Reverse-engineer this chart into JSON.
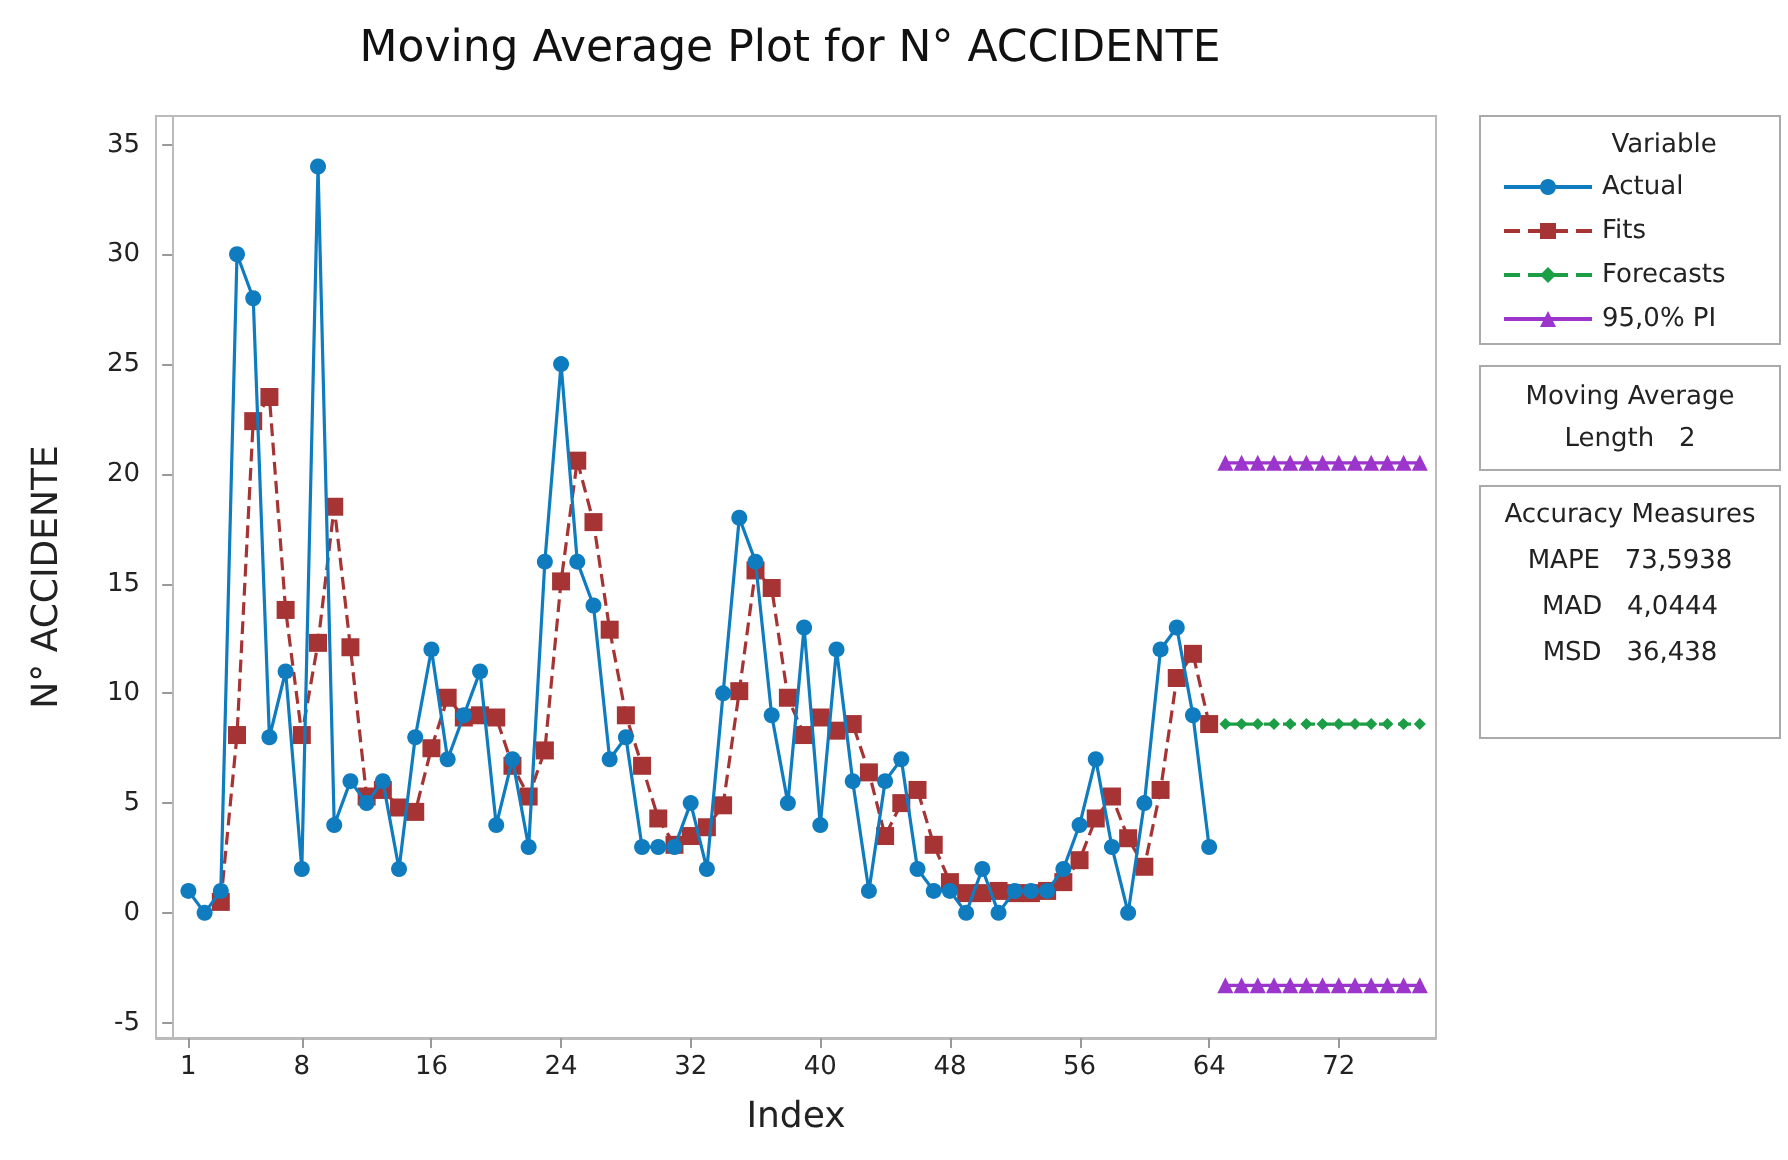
{
  "chart_data": {
    "type": "line",
    "title": "Moving Average Plot for N° ACCIDENTE",
    "xlabel": "Index",
    "ylabel": "N° ACCIDENTE",
    "legend_title": "Variable",
    "legend": "right",
    "grid": false,
    "xlim": [
      -1,
      78
    ],
    "xticks": [
      1,
      8,
      16,
      24,
      32,
      40,
      48,
      56,
      64,
      72
    ],
    "ylim": [
      -5.7,
      36.3
    ],
    "yticks": [
      -5,
      0,
      5,
      10,
      15,
      20,
      25,
      30,
      35
    ],
    "series": [
      {
        "name": "Actual",
        "color": "#0f7cc0",
        "marker": "circle",
        "line_style": "solid",
        "x": [
          1,
          2,
          3,
          4,
          5,
          6,
          7,
          8,
          9,
          10,
          11,
          12,
          13,
          14,
          15,
          16,
          17,
          18,
          19,
          20,
          21,
          22,
          23,
          24,
          25,
          26,
          27,
          28,
          29,
          30,
          31,
          32,
          33,
          34,
          35,
          36,
          37,
          38,
          39,
          40,
          41,
          42,
          43,
          44,
          45,
          46,
          47,
          48,
          49,
          50,
          51,
          52,
          53,
          54,
          55,
          56,
          57,
          58,
          59,
          60,
          61,
          62,
          63,
          64
        ],
        "values": [
          1,
          0,
          1,
          30,
          28,
          8,
          11,
          2,
          34,
          4,
          6,
          5,
          6,
          2,
          8,
          12,
          7,
          9,
          11,
          4,
          7,
          3,
          16,
          25,
          16,
          14,
          7,
          8,
          3,
          3,
          3,
          5,
          2,
          10,
          18,
          16,
          9,
          5,
          13,
          4,
          12,
          6,
          1,
          6,
          7,
          2,
          1,
          1,
          0,
          2,
          0,
          1,
          1,
          1,
          2,
          4,
          7,
          3,
          0,
          5,
          12,
          13,
          9,
          3
        ]
      },
      {
        "name": "Fits",
        "color": "#a63434",
        "marker": "square",
        "line_style": "dashed",
        "x": [
          3,
          4,
          5,
          6,
          7,
          8,
          9,
          10,
          11,
          12,
          13,
          14,
          15,
          16,
          17,
          18,
          19,
          20,
          21,
          22,
          23,
          24,
          25,
          26,
          27,
          28,
          29,
          30,
          31,
          32,
          33,
          34,
          35,
          36,
          37,
          38,
          39,
          40,
          41,
          42,
          43,
          44,
          45,
          46,
          47,
          48,
          49,
          50,
          51,
          52,
          53,
          54,
          55,
          56,
          57,
          58,
          59,
          60,
          61,
          62,
          63,
          64
        ],
        "values": [
          0.5,
          8.1,
          22.4,
          23.5,
          13.8,
          8.1,
          12.3,
          18.5,
          12.1,
          5.3,
          5.6,
          4.8,
          4.6,
          7.5,
          9.8,
          8.9,
          9.0,
          8.9,
          6.7,
          5.3,
          7.4,
          15.1,
          20.6,
          17.8,
          12.9,
          9.0,
          6.7,
          4.3,
          3.1,
          3.5,
          3.9,
          4.9,
          10.1,
          15.6,
          14.8,
          9.8,
          8.1,
          8.9,
          8.3,
          8.6,
          6.4,
          3.5,
          5.0,
          5.6,
          3.1,
          1.4,
          0.9,
          0.9,
          1.0,
          0.9,
          0.9,
          1.0,
          1.4,
          2.4,
          4.3,
          5.3,
          3.4,
          2.1,
          5.6,
          10.7,
          11.8,
          8.6
        ]
      },
      {
        "name": "Forecasts",
        "color": "#1b9e45",
        "marker": "diamond",
        "line_style": "dashed",
        "x": [
          65,
          66,
          67,
          68,
          69,
          70,
          71,
          72,
          73,
          74,
          75,
          76,
          77
        ],
        "values": [
          8.6,
          8.6,
          8.6,
          8.6,
          8.6,
          8.6,
          8.6,
          8.6,
          8.6,
          8.6,
          8.6,
          8.6,
          8.6
        ]
      },
      {
        "name": "95,0% PI",
        "color": "#9b35cc",
        "marker": "triangle",
        "line_style": "solid",
        "x": [
          65,
          66,
          67,
          68,
          69,
          70,
          71,
          72,
          73,
          74,
          75,
          76,
          77
        ],
        "values": [
          20.5,
          20.5,
          20.5,
          20.5,
          20.5,
          20.5,
          20.5,
          20.5,
          20.5,
          20.5,
          20.5,
          20.5,
          20.5
        ]
      },
      {
        "color": "#9b35cc",
        "marker": "triangle",
        "line_style": "solid",
        "x": [
          65,
          66,
          67,
          68,
          69,
          70,
          71,
          72,
          73,
          74,
          75,
          76,
          77
        ],
        "values": [
          -3.3,
          -3.3,
          -3.3,
          -3.3,
          -3.3,
          -3.3,
          -3.3,
          -3.3,
          -3.3,
          -3.3,
          -3.3,
          -3.3,
          -3.3
        ]
      }
    ],
    "annotations": [
      "Moving Average",
      "Length   2",
      "Accuracy Measures",
      "MAPE   73,5938",
      "MAD   4,0444",
      "MSD   36,438"
    ]
  }
}
